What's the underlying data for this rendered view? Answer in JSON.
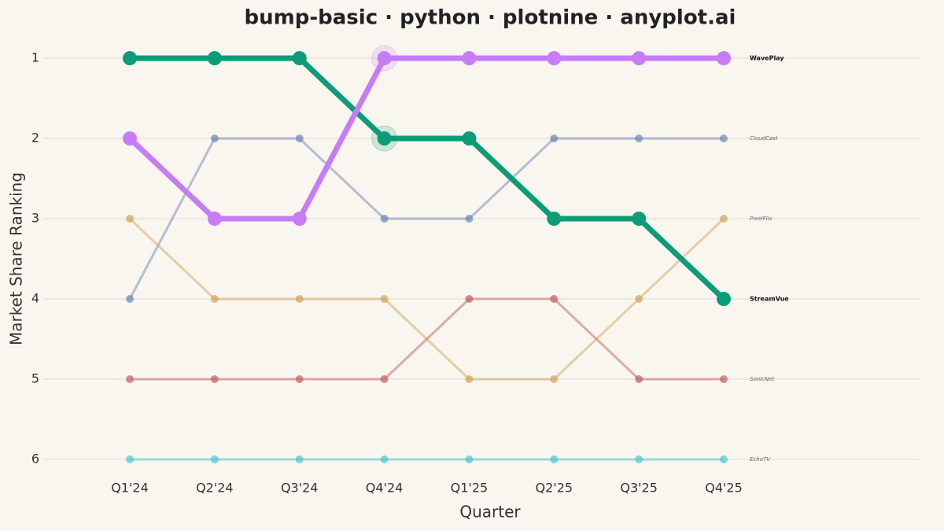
{
  "chart_data": {
    "type": "bump",
    "title": "bump-basic · python · plotnine · anyplot.ai",
    "x_label": "Quarter",
    "y_label": "Market Share Ranking",
    "categories": [
      "Q1'24",
      "Q2'24",
      "Q3'24",
      "Q4'24",
      "Q1'25",
      "Q2'25",
      "Q3'25",
      "Q4'25"
    ],
    "series": [
      {
        "name": "CloudCast",
        "color": "#6f86b3",
        "highlight": false,
        "values": [
          4,
          2,
          2,
          3,
          3,
          2,
          2,
          2
        ]
      },
      {
        "name": "PixelFlix",
        "color": "#d4a45c",
        "highlight": false,
        "values": [
          3,
          4,
          4,
          4,
          5,
          5,
          4,
          3
        ]
      },
      {
        "name": "SonicNet",
        "color": "#c46060",
        "highlight": false,
        "values": [
          5,
          5,
          5,
          5,
          4,
          4,
          5,
          5
        ]
      },
      {
        "name": "EchoTV",
        "color": "#4fc4d0",
        "highlight": false,
        "values": [
          6,
          6,
          6,
          6,
          6,
          6,
          6,
          6
        ]
      },
      {
        "name": "StreamVue",
        "color": "#0c9c78",
        "highlight": true,
        "values": [
          1,
          1,
          1,
          2,
          2,
          3,
          3,
          4
        ]
      },
      {
        "name": "WavePlay",
        "color": "#c77cf7",
        "highlight": true,
        "values": [
          2,
          3,
          3,
          1,
          1,
          1,
          1,
          1
        ]
      }
    ],
    "ylim": [
      6.3,
      0.7
    ],
    "yticks": [
      1,
      2,
      3,
      4,
      5,
      6
    ],
    "grid": true
  }
}
